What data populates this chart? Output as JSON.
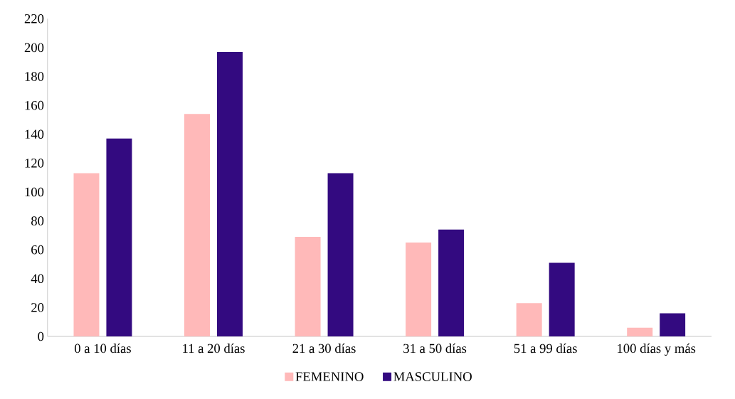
{
  "chart_data": {
    "type": "bar",
    "categories": [
      "0 a 10 días",
      "11 a 20 días",
      "21 a 30 días",
      "31 a 50 días",
      "51 a 99 días",
      "100 días y más"
    ],
    "series": [
      {
        "name": "FEMENINO",
        "color": "#ffb9b9",
        "values": [
          113,
          154,
          69,
          65,
          23,
          6
        ]
      },
      {
        "name": "MASCULINO",
        "color": "#330a80",
        "values": [
          137,
          197,
          113,
          74,
          51,
          16
        ]
      }
    ],
    "ylim": [
      0,
      220
    ],
    "yticks": [
      0,
      20,
      40,
      60,
      80,
      100,
      120,
      140,
      160,
      180,
      200,
      220
    ],
    "legend": "bottom"
  }
}
